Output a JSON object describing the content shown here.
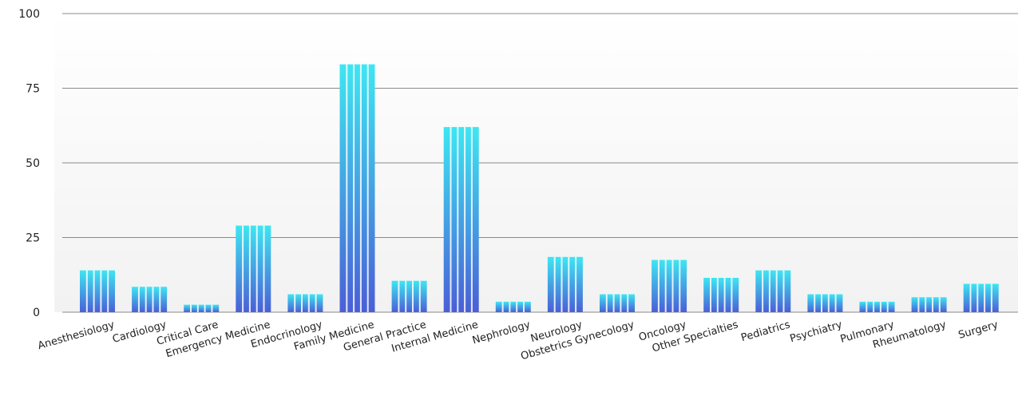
{
  "chart_data": {
    "type": "bar",
    "categories": [
      "Anesthesiology",
      "Cardiology",
      "Critical Care",
      "Emergency Medicine",
      "Endocrinology",
      "Family Medicine",
      "General Practice",
      "Internal Medicine",
      "Nephrology",
      "Neurology",
      "Obstetrics Gynecology",
      "Oncology",
      "Other Specialties",
      "Pediatrics",
      "Psychiatry",
      "Pulmonary",
      "Rheumatology",
      "Surgery"
    ],
    "values": [
      14,
      8.5,
      2.5,
      29,
      6,
      83,
      10.5,
      62,
      3.5,
      18.5,
      6,
      17.5,
      11.5,
      14,
      6,
      3.5,
      5,
      9.5
    ],
    "ylim": [
      0,
      100
    ],
    "yticks": [
      0,
      25,
      50,
      75,
      100
    ],
    "grid": true,
    "legend": "none",
    "colors": {
      "bar_top": "#3ee6f2",
      "bar_bottom": "#4a5fd6",
      "grid": "#8a8a8a",
      "plot_bg_top": "#ffffff",
      "plot_bg_bottom": "#f2f2f2"
    }
  }
}
